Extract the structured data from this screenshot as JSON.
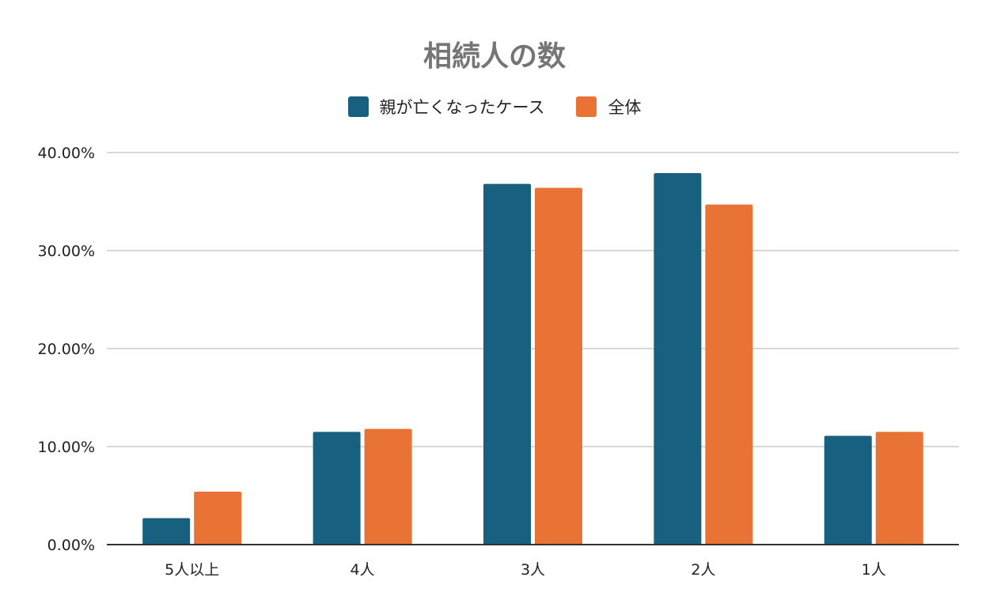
{
  "chart_data": {
    "type": "bar",
    "title": "相続人の数",
    "categories": [
      "5人以上",
      "4人",
      "3人",
      "2人",
      "1人"
    ],
    "series": [
      {
        "name": "親が亡くなったケース",
        "color": "#17607f",
        "values": [
          2.7,
          11.5,
          36.8,
          37.9,
          11.1
        ]
      },
      {
        "name": "全体",
        "color": "#e87334",
        "values": [
          5.4,
          11.8,
          36.4,
          34.7,
          11.5
        ]
      }
    ],
    "yticks": [
      "0.00%",
      "10.00%",
      "20.00%",
      "30.00%",
      "40.00%"
    ],
    "ylim": [
      0,
      40
    ],
    "grid": true,
    "legend": "top-center"
  }
}
